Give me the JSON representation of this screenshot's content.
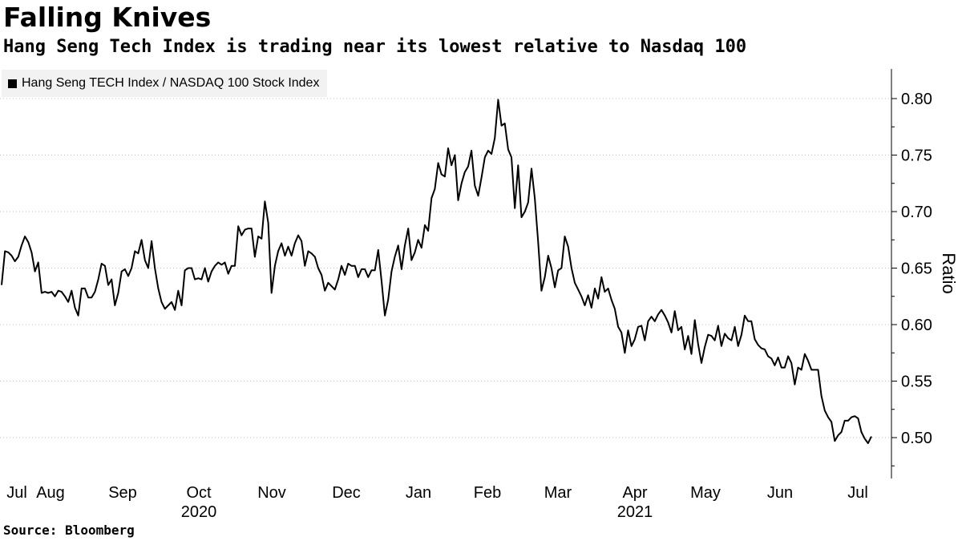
{
  "header": {
    "title": "Falling Knives",
    "subtitle": "Hang Seng Tech Index is trading near its lowest relative to Nasdaq 100"
  },
  "footer": {
    "source": "Source: Bloomberg"
  },
  "colors": {
    "line": "#000000",
    "grid": "#bfbfbf",
    "legend_bg": "#f2f2f2"
  },
  "chart_data": {
    "type": "line",
    "title": "Falling Knives",
    "subtitle": "Hang Seng Tech Index is trading near its lowest relative to Nasdaq 100",
    "ylabel": "Ratio",
    "xlabel": "",
    "ylim": [
      0.465,
      0.83
    ],
    "y_ticks": [
      0.5,
      0.55,
      0.6,
      0.65,
      0.7,
      0.75,
      0.8
    ],
    "y_tick_labels": [
      "0.50",
      "0.55",
      "0.60",
      "0.65",
      "0.70",
      "0.75",
      "0.80"
    ],
    "x_month_labels": [
      "Jul",
      "Aug",
      "Sep",
      "Oct",
      "Nov",
      "Dec",
      "Jan",
      "Feb",
      "Mar",
      "Apr",
      "May",
      "Jun",
      "Jul"
    ],
    "x_year_labels": [
      {
        "label": "2020",
        "month_index": 3
      },
      {
        "label": "2021",
        "month_index": 9
      }
    ],
    "grid": true,
    "legend_position": "top-left",
    "series": [
      {
        "name": "Hang Seng TECH Index / NASDAQ 100 Stock Index",
        "x_month_start": 0.0,
        "x_month_end": 12.4,
        "values": [
          0.635,
          0.665,
          0.664,
          0.661,
          0.656,
          0.66,
          0.67,
          0.678,
          0.673,
          0.664,
          0.647,
          0.655,
          0.628,
          0.629,
          0.628,
          0.629,
          0.625,
          0.63,
          0.629,
          0.625,
          0.62,
          0.63,
          0.615,
          0.608,
          0.632,
          0.632,
          0.624,
          0.624,
          0.629,
          0.64,
          0.654,
          0.652,
          0.635,
          0.64,
          0.617,
          0.628,
          0.647,
          0.649,
          0.643,
          0.65,
          0.665,
          0.663,
          0.675,
          0.657,
          0.65,
          0.674,
          0.65,
          0.632,
          0.62,
          0.614,
          0.617,
          0.62,
          0.613,
          0.63,
          0.617,
          0.648,
          0.65,
          0.65,
          0.64,
          0.641,
          0.64,
          0.65,
          0.638,
          0.647,
          0.652,
          0.655,
          0.653,
          0.655,
          0.645,
          0.652,
          0.652,
          0.687,
          0.679,
          0.684,
          0.685,
          0.685,
          0.66,
          0.678,
          0.676,
          0.709,
          0.69,
          0.628,
          0.652,
          0.665,
          0.672,
          0.661,
          0.669,
          0.661,
          0.672,
          0.679,
          0.674,
          0.652,
          0.665,
          0.663,
          0.66,
          0.65,
          0.644,
          0.63,
          0.637,
          0.634,
          0.631,
          0.64,
          0.652,
          0.644,
          0.654,
          0.652,
          0.652,
          0.642,
          0.649,
          0.649,
          0.642,
          0.648,
          0.648,
          0.666,
          0.639,
          0.608,
          0.622,
          0.647,
          0.66,
          0.67,
          0.649,
          0.67,
          0.685,
          0.657,
          0.664,
          0.675,
          0.668,
          0.688,
          0.683,
          0.712,
          0.72,
          0.743,
          0.733,
          0.731,
          0.756,
          0.741,
          0.75,
          0.71,
          0.725,
          0.735,
          0.74,
          0.754,
          0.723,
          0.714,
          0.73,
          0.748,
          0.754,
          0.751,
          0.765,
          0.799,
          0.776,
          0.778,
          0.755,
          0.748,
          0.703,
          0.741,
          0.695,
          0.7,
          0.708,
          0.738,
          0.712,
          0.673,
          0.63,
          0.642,
          0.661,
          0.65,
          0.633,
          0.648,
          0.65,
          0.678,
          0.669,
          0.65,
          0.637,
          0.631,
          0.625,
          0.617,
          0.626,
          0.615,
          0.632,
          0.623,
          0.642,
          0.629,
          0.632,
          0.622,
          0.614,
          0.598,
          0.593,
          0.575,
          0.595,
          0.581,
          0.587,
          0.598,
          0.599,
          0.586,
          0.603,
          0.607,
          0.603,
          0.609,
          0.613,
          0.608,
          0.602,
          0.593,
          0.612,
          0.595,
          0.598,
          0.578,
          0.59,
          0.574,
          0.604,
          0.583,
          0.566,
          0.58,
          0.591,
          0.59,
          0.586,
          0.599,
          0.581,
          0.592,
          0.588,
          0.586,
          0.598,
          0.581,
          0.591,
          0.608,
          0.603,
          0.603,
          0.587,
          0.582,
          0.579,
          0.578,
          0.572,
          0.57,
          0.564,
          0.571,
          0.562,
          0.562,
          0.572,
          0.566,
          0.547,
          0.562,
          0.56,
          0.574,
          0.568,
          0.56,
          0.56,
          0.56,
          0.537,
          0.524,
          0.518,
          0.514,
          0.497,
          0.502,
          0.505,
          0.515,
          0.515,
          0.518,
          0.519,
          0.517,
          0.505,
          0.499,
          0.495,
          0.501
        ]
      }
    ]
  }
}
